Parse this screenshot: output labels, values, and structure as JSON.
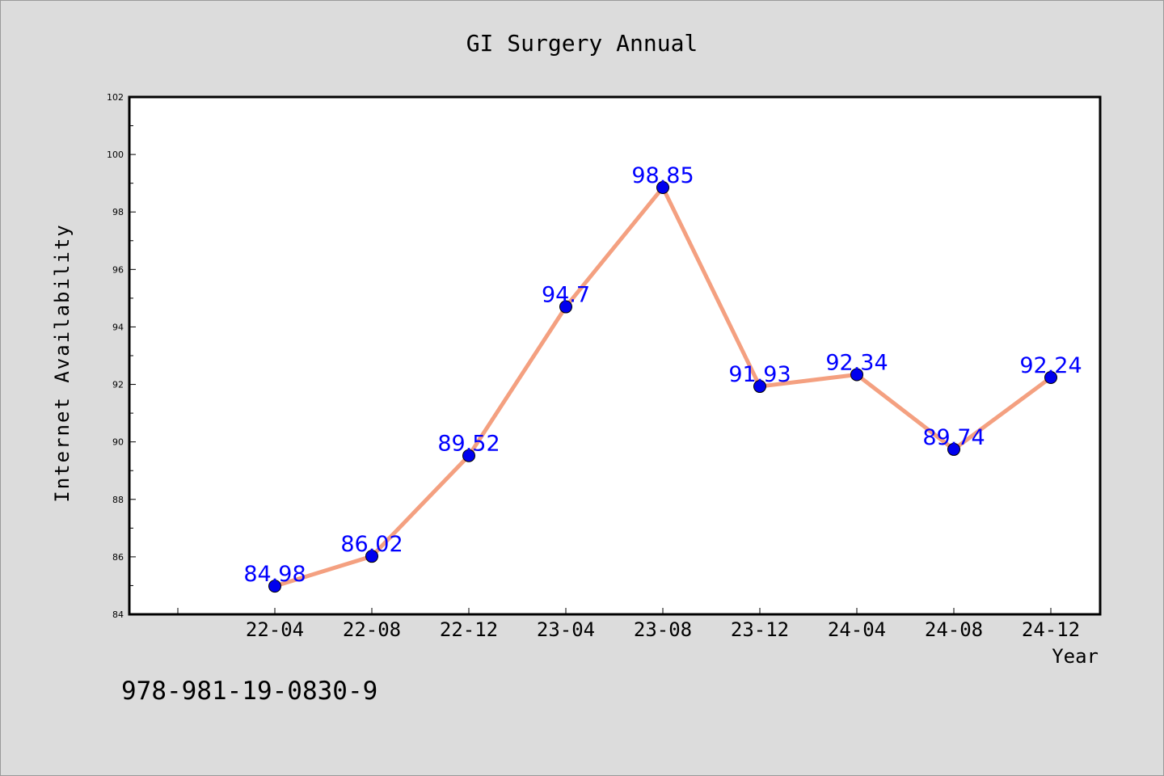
{
  "chart_data": {
    "type": "line",
    "title": "GI Surgery Annual",
    "xlabel": "Year",
    "ylabel": "Internet Availability",
    "categories": [
      "22-04",
      "22-08",
      "22-12",
      "23-04",
      "23-08",
      "23-12",
      "24-04",
      "24-08",
      "24-12"
    ],
    "series": [
      {
        "values": [
          84.98,
          86.02,
          89.52,
          94.7,
          98.85,
          91.93,
          92.34,
          89.74,
          92.24
        ],
        "labels": [
          "84.98",
          "86.02",
          "89.52",
          "94.7",
          "98.85",
          "91.93",
          "92.34",
          "89.74",
          "92.24"
        ]
      }
    ],
    "ylim": [
      84,
      102
    ],
    "yticks": [
      84,
      86,
      88,
      90,
      92,
      94,
      96,
      98,
      100,
      102
    ],
    "grid": false,
    "legend": "none",
    "colors": {
      "line": "#f4a080",
      "marker": "#0000ee",
      "data_label": "#0000ff",
      "background": "#dcdcdc",
      "plot_background": "#ffffff"
    }
  },
  "footer": {
    "isbn": "978-981-19-0830-9"
  }
}
